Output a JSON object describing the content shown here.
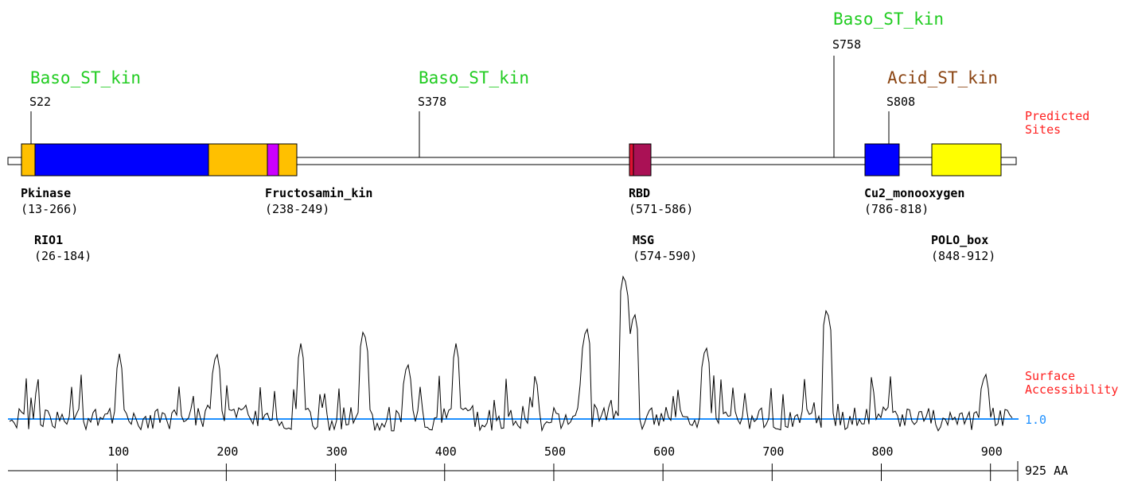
{
  "legend": {
    "predicted_sites": "Predicted\nSites",
    "surface_accessibility": "Surface\nAccessibility",
    "baseline_label": "1.0",
    "length_label": "925 AA"
  },
  "colors": {
    "baso_kin": "#22cc22",
    "acid_kin": "#8b4513",
    "side_label": "#ff2020",
    "baseline": "#1e90ff",
    "orange": "#ffc000",
    "blue": "#0000ff",
    "magenta": "#cc00ff",
    "crimson": "#aa1155",
    "yellow": "#ffff00"
  },
  "protein_length": 925,
  "sites": [
    {
      "type": "Baso_ST_kin",
      "color": "baso",
      "position": "S22"
    },
    {
      "type": "Baso_ST_kin",
      "color": "baso",
      "position": "S378"
    },
    {
      "type": "Baso_ST_kin",
      "color": "baso",
      "position": "S758"
    },
    {
      "type": "Acid_ST_kin",
      "color": "acid",
      "position": "S808"
    }
  ],
  "domains_row1": [
    {
      "name": "Pkinase",
      "range": "(13-266)"
    },
    {
      "name": "Fructosamin_kin",
      "range": "(238-249)"
    },
    {
      "name": "RBD",
      "range": "(571-586)"
    },
    {
      "name": "Cu2_monooxygen",
      "range": "(786-818)"
    }
  ],
  "domains_row2": [
    {
      "name": "RIO1",
      "range": "(26-184)"
    },
    {
      "name": "MSG",
      "range": "(574-590)"
    },
    {
      "name": "POLO_box",
      "range": "(848-912)"
    }
  ],
  "axis_ticks": [
    "100",
    "200",
    "300",
    "400",
    "500",
    "600",
    "700",
    "800",
    "900"
  ]
}
